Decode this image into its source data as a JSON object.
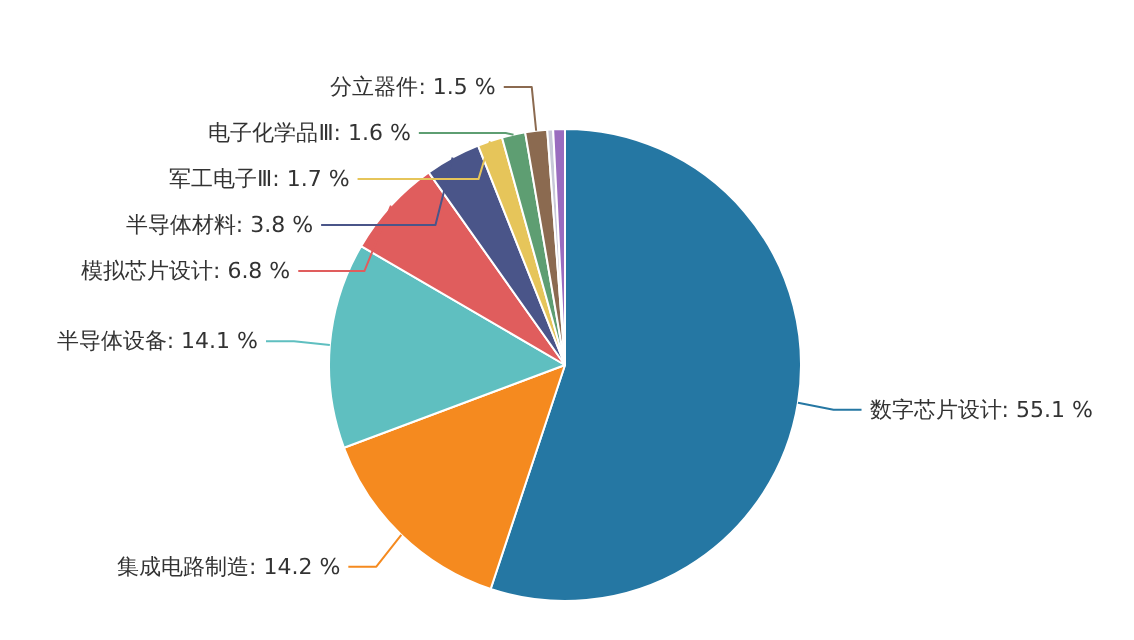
{
  "chart_data": {
    "type": "pie",
    "categories": [
      "数字芯片设计",
      "集成电路制造",
      "半导体设备",
      "模拟芯片设计",
      "半导体材料",
      "军工电子Ⅲ",
      "电子化学品Ⅲ",
      "分立器件",
      null,
      null
    ],
    "values": [
      55.1,
      14.2,
      14.1,
      6.8,
      3.8,
      1.7,
      1.6,
      1.5,
      0.4,
      0.8
    ],
    "value_labels": [
      "55.1 %",
      "14.2 %",
      "14.1 %",
      "6.8 %",
      "3.8 %",
      "1.7 %",
      "1.6 %",
      "1.5 %",
      null,
      null
    ],
    "colors": [
      "#2577a3",
      "#f58a1f",
      "#5fbfc0",
      "#e05d5d",
      "#4a5589",
      "#e6c55a",
      "#5e9e72",
      "#8b6a50",
      "#c8c8d8",
      "#9a6cbf"
    ]
  }
}
